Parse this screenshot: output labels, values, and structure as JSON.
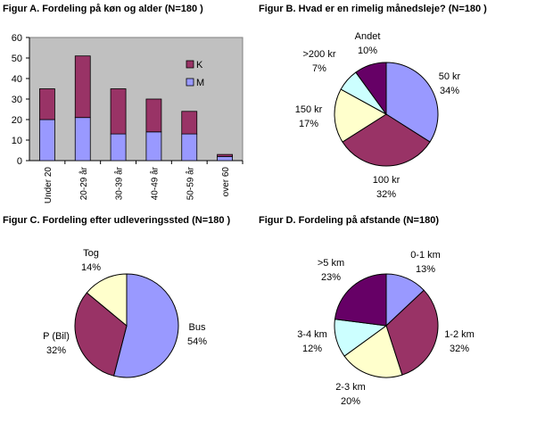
{
  "chart_data": [
    {
      "id": "A",
      "type": "bar",
      "stacked": true,
      "title": "Figur A. Fordeling på køn og alder (N=180  )",
      "categories": [
        "Under 20",
        "20-29 år",
        "30-39 år",
        "40-49 år",
        "50-59 år",
        "over 60"
      ],
      "series": [
        {
          "name": "M",
          "color": "#9999ff",
          "values": [
            20,
            21,
            13,
            14,
            13,
            2
          ]
        },
        {
          "name": "K",
          "color": "#993366",
          "values": [
            15,
            30,
            22,
            16,
            11,
            1
          ]
        }
      ],
      "ylim": [
        0,
        60
      ],
      "yticks": [
        "0",
        "10",
        "20",
        "30",
        "40",
        "50",
        "60"
      ],
      "legend": "right",
      "plot_bg": "#c0c0c0"
    },
    {
      "id": "B",
      "type": "pie",
      "title": "Figur B. Hvad er en rimelig månedsleje? (N=180  )",
      "slices": [
        {
          "label": "50 kr",
          "pct": "34%",
          "value": 34,
          "color": "#9999ff"
        },
        {
          "label": "100 kr",
          "pct": "32%",
          "value": 32,
          "color": "#993366"
        },
        {
          "label": "150 kr",
          "pct": "17%",
          "value": 17,
          "color": "#ffffcc"
        },
        {
          "label": ">200 kr",
          "pct": "7%",
          "value": 7,
          "color": "#ccffff"
        },
        {
          "label": "Andet",
          "pct": "10%",
          "value": 10,
          "color": "#660066"
        }
      ]
    },
    {
      "id": "C",
      "type": "pie",
      "title": "Figur C. Fordeling efter udleveringssted (N=180 )",
      "slices": [
        {
          "label": "Bus",
          "pct": "54%",
          "value": 54,
          "color": "#9999ff"
        },
        {
          "label": "P (Bil)",
          "pct": "32%",
          "value": 32,
          "color": "#993366"
        },
        {
          "label": "Tog",
          "pct": "14%",
          "value": 14,
          "color": "#ffffcc"
        }
      ]
    },
    {
      "id": "D",
      "type": "pie",
      "title": "Figur D. Fordeling på afstande (N=180)",
      "slices": [
        {
          "label": "0-1 km",
          "pct": "13%",
          "value": 13,
          "color": "#9999ff"
        },
        {
          "label": "1-2 km",
          "pct": "32%",
          "value": 32,
          "color": "#993366"
        },
        {
          "label": "2-3 km",
          "pct": "20%",
          "value": 20,
          "color": "#ffffcc"
        },
        {
          "label": "3-4 km",
          "pct": "12%",
          "value": 12,
          "color": "#ccffff"
        },
        {
          "label": ">5 km",
          "pct": "23%",
          "value": 23,
          "color": "#660066"
        }
      ]
    }
  ]
}
